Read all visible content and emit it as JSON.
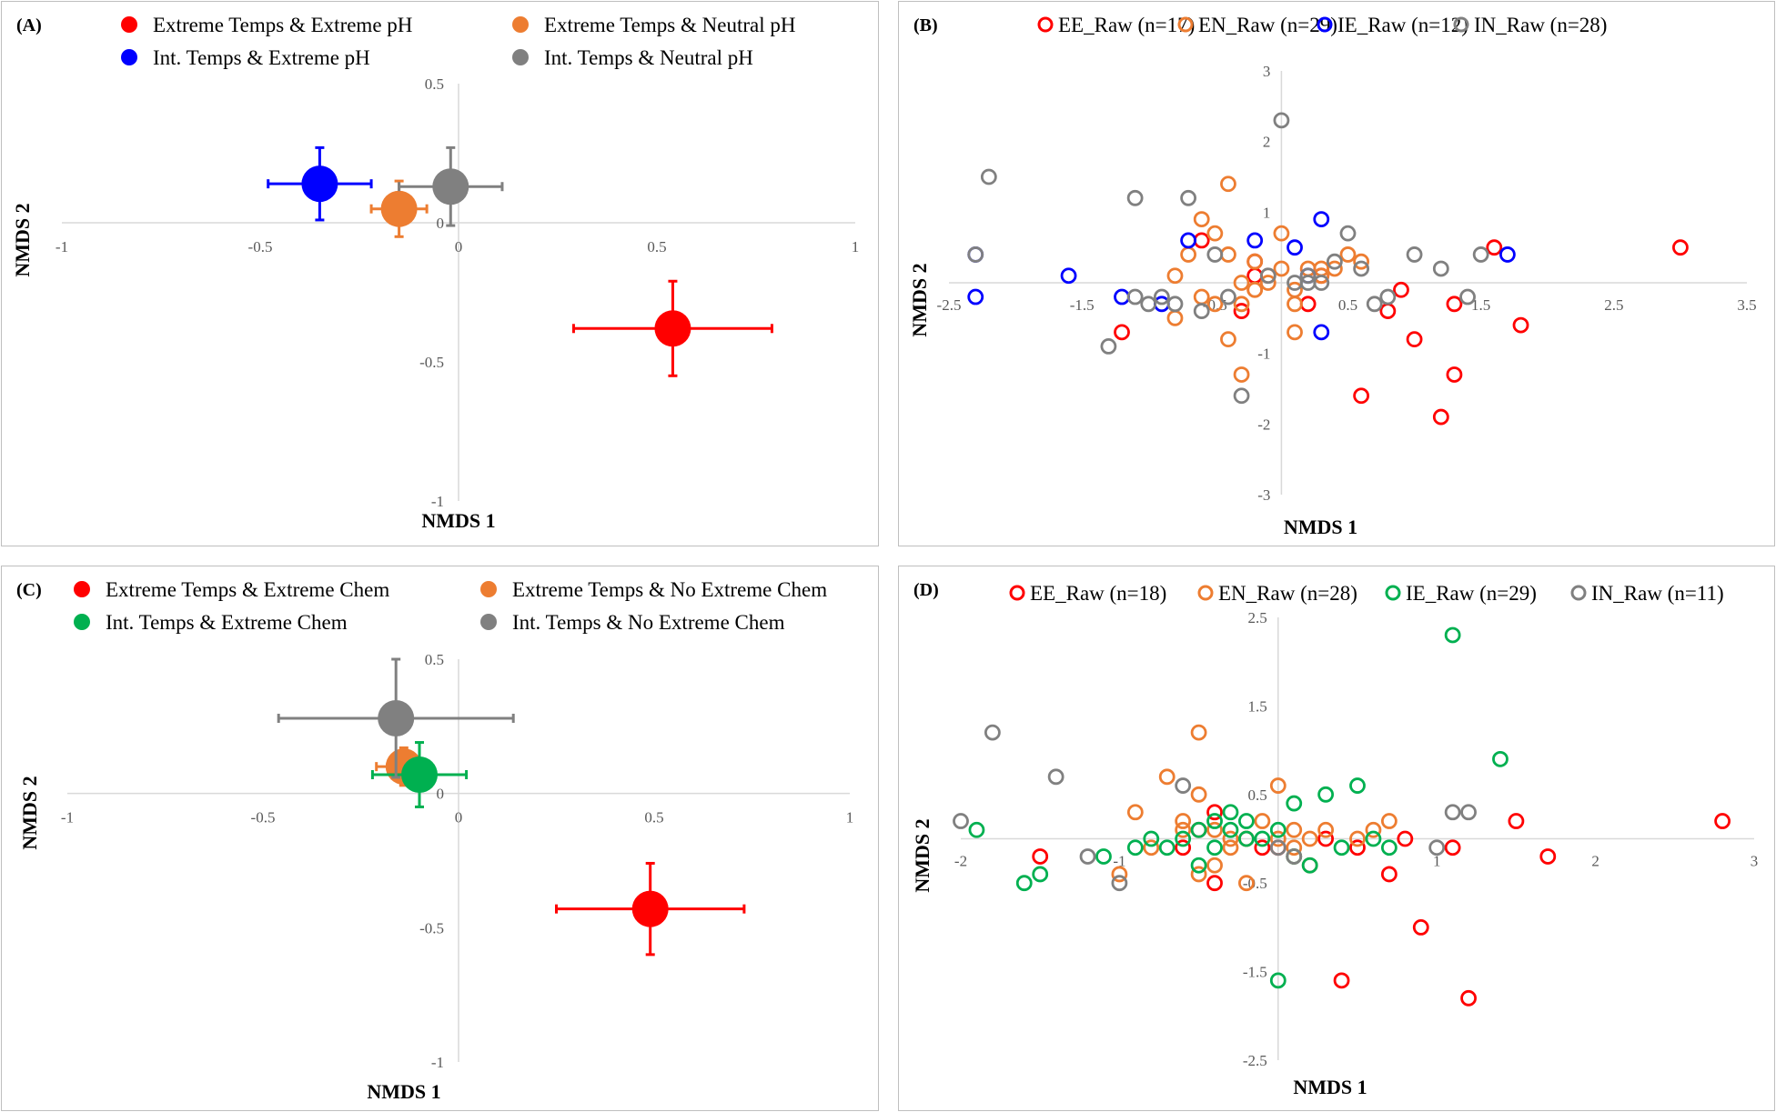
{
  "chart_data": [
    {
      "id": "A",
      "panel_label": "(A)",
      "type": "scatter",
      "xlabel": "NMDS 1",
      "ylabel": "NMDS 2",
      "xlim": [
        -1,
        1
      ],
      "ylim": [
        -1,
        0.5
      ],
      "x_ticks": [
        -1,
        -0.5,
        0,
        0.5,
        1
      ],
      "y_ticks": [
        0.5,
        0,
        -0.5,
        -1
      ],
      "x_tick_labels": [
        "-1",
        "-0.5",
        "0",
        "0.5",
        "1"
      ],
      "y_tick_labels": [
        "0.5",
        "0",
        "-0.5",
        "-1"
      ],
      "legend_placement": "top",
      "series": [
        {
          "name": "Extreme Temps & Extreme pH",
          "color": "#ff0000",
          "points": [
            {
              "x": 0.54,
              "y": -0.38,
              "xerr": 0.25,
              "yerr": 0.17
            }
          ]
        },
        {
          "name": "Extreme Temps & Neutral pH",
          "color": "#ed7d31",
          "points": [
            {
              "x": -0.15,
              "y": 0.05,
              "xerr": 0.07,
              "yerr": 0.1
            }
          ]
        },
        {
          "name": "Int. Temps & Extreme pH",
          "color": "#0000ff",
          "points": [
            {
              "x": -0.35,
              "y": 0.14,
              "xerr": 0.13,
              "yerr": 0.13
            }
          ]
        },
        {
          "name": "Int. Temps & Neutral pH",
          "color": "#808080",
          "points": [
            {
              "x": -0.02,
              "y": 0.13,
              "xerr": 0.13,
              "yerr": 0.14
            }
          ]
        }
      ]
    },
    {
      "id": "B",
      "panel_label": "(B)",
      "type": "scatter",
      "xlabel": "NMDS 1",
      "ylabel": "NMDS 2",
      "xlim": [
        -2.5,
        3.5
      ],
      "ylim": [
        -3,
        3
      ],
      "x_ticks": [
        -2.5,
        -1.5,
        -0.5,
        0.5,
        1.5,
        2.5,
        3.5
      ],
      "y_ticks": [
        3,
        2,
        1,
        -1,
        -2,
        -3
      ],
      "x_tick_labels": [
        "-2.5",
        "-1.5",
        "-0.5",
        "0.5",
        "1.5",
        "2.5",
        "3.5"
      ],
      "y_tick_labels": [
        "3",
        "2",
        "1",
        "-1",
        "-2",
        "-3"
      ],
      "legend_placement": "top",
      "series": [
        {
          "name": "EE_Raw (n=17)",
          "color": "#ff0000",
          "x": [
            3.0,
            1.6,
            1.8,
            0.8,
            1.3,
            1.3,
            1.2,
            1.0,
            0.9,
            0.6,
            0.2,
            0.3,
            -0.2,
            -0.6,
            -0.3,
            -1.2,
            -0.2
          ],
          "y": [
            0.5,
            0.5,
            -0.6,
            -0.4,
            -0.3,
            -1.3,
            -1.9,
            -0.8,
            -0.1,
            -1.6,
            -0.3,
            0.1,
            0.3,
            0.6,
            -0.4,
            -0.7,
            0.1
          ]
        },
        {
          "name": "EN_Raw (n=29)",
          "color": "#ed7d31",
          "x": [
            -0.4,
            -0.6,
            -0.5,
            -0.4,
            -0.7,
            -0.8,
            -0.2,
            -0.1,
            0.0,
            0.1,
            0.2,
            0.3,
            0.4,
            0.5,
            0.6,
            -0.3,
            -0.2,
            -0.1,
            0.1,
            0.0,
            -0.3,
            -0.4,
            -0.6,
            -0.3,
            0.1,
            -0.2,
            0.3,
            -0.8,
            -0.5
          ],
          "y": [
            1.4,
            0.9,
            0.7,
            0.4,
            0.4,
            0.1,
            -0.1,
            0.1,
            0.2,
            -0.1,
            0.2,
            0.1,
            0.2,
            0.4,
            0.3,
            0.0,
            0.3,
            0.0,
            -0.3,
            0.7,
            -1.3,
            -0.8,
            -0.2,
            -0.3,
            -0.7,
            -0.1,
            0.2,
            -0.5,
            -0.3
          ]
        },
        {
          "name": "IE_Raw (n=12)",
          "color": "#0000ff",
          "x": [
            -2.3,
            -2.3,
            -1.6,
            -1.2,
            -0.7,
            -0.2,
            0.1,
            0.2,
            0.3,
            0.3,
            1.7,
            -0.9
          ],
          "y": [
            0.4,
            -0.2,
            0.1,
            -0.2,
            0.6,
            0.6,
            0.5,
            0.1,
            0.9,
            -0.7,
            0.4,
            -0.3
          ]
        },
        {
          "name": "IN_Raw (n=28)",
          "color": "#808080",
          "x": [
            -2.2,
            -2.3,
            -1.1,
            -1.3,
            -0.3,
            -0.6,
            -0.8,
            -0.9,
            -1.0,
            -1.1,
            -0.5,
            -0.7,
            0.0,
            0.1,
            0.2,
            0.3,
            0.4,
            0.5,
            0.6,
            0.7,
            0.8,
            1.0,
            1.2,
            1.4,
            1.5,
            0.2,
            -0.1,
            -0.4
          ],
          "y": [
            1.5,
            0.4,
            1.2,
            -0.9,
            -1.6,
            -0.4,
            -0.3,
            -0.2,
            -0.3,
            -0.2,
            0.4,
            1.2,
            2.3,
            0.0,
            0.1,
            0.0,
            0.3,
            0.7,
            0.2,
            -0.3,
            -0.2,
            0.4,
            0.2,
            -0.2,
            0.4,
            0.0,
            0.1,
            -0.2
          ]
        }
      ]
    },
    {
      "id": "C",
      "panel_label": "(C)",
      "type": "scatter",
      "xlabel": "NMDS 1",
      "ylabel": "NMDS 2",
      "xlim": [
        -1,
        1
      ],
      "ylim": [
        -1,
        0.5
      ],
      "x_ticks": [
        -1,
        -0.5,
        0,
        0.5,
        1
      ],
      "y_ticks": [
        0.5,
        0,
        -0.5,
        -1
      ],
      "x_tick_labels": [
        "-1",
        "-0.5",
        "0",
        "0.5",
        "1"
      ],
      "y_tick_labels": [
        "0.5",
        "0",
        "-0.5",
        "-1"
      ],
      "legend_placement": "top",
      "series": [
        {
          "name": "Extreme Temps & Extreme Chem",
          "color": "#ff0000",
          "points": [
            {
              "x": 0.49,
              "y": -0.43,
              "xerr": 0.24,
              "yerr": 0.17
            }
          ]
        },
        {
          "name": "Extreme Temps & No Extreme Chem",
          "color": "#ed7d31",
          "points": [
            {
              "x": -0.14,
              "y": 0.1,
              "xerr": 0.07,
              "yerr": 0.07
            }
          ]
        },
        {
          "name": "Int. Temps & Extreme Chem",
          "color": "#00b050",
          "points": [
            {
              "x": -0.1,
              "y": 0.07,
              "xerr": 0.12,
              "yerr": 0.12
            }
          ]
        },
        {
          "name": "Int. Temps & No Extreme Chem",
          "color": "#808080",
          "points": [
            {
              "x": -0.16,
              "y": 0.28,
              "xerr": 0.3,
              "yerr": 0.22
            }
          ]
        }
      ]
    },
    {
      "id": "D",
      "panel_label": "(D)",
      "type": "scatter",
      "xlabel": "NMDS 1",
      "ylabel": "NMDS 2",
      "xlim": [
        -2,
        3
      ],
      "ylim": [
        -2.5,
        2.5
      ],
      "x_ticks": [
        -2,
        -1,
        1,
        2,
        3
      ],
      "y_ticks": [
        2.5,
        1.5,
        0.5,
        -0.5,
        -1.5,
        -2.5
      ],
      "x_tick_labels": [
        "-2",
        "-1",
        "1",
        "2",
        "3"
      ],
      "y_tick_labels": [
        "2.5",
        "1.5",
        "0.5",
        "-0.5",
        "-1.5",
        "-2.5"
      ],
      "legend_placement": "top",
      "series": [
        {
          "name": "EE_Raw (n=18)",
          "color": "#ff0000",
          "x": [
            2.8,
            1.5,
            1.7,
            0.4,
            0.9,
            1.2,
            1.1,
            0.7,
            0.8,
            0.5,
            0.3,
            -0.4,
            -0.5,
            -0.4,
            -0.1,
            -0.6,
            -1.5,
            0.0
          ],
          "y": [
            0.2,
            0.2,
            -0.2,
            -1.6,
            -1.0,
            -1.8,
            -0.1,
            -0.4,
            0.0,
            -0.1,
            0.0,
            0.3,
            0.1,
            -0.5,
            -0.1,
            -0.1,
            -0.2,
            -0.1
          ]
        },
        {
          "name": "EN_Raw (n=28)",
          "color": "#ed7d31",
          "x": [
            -0.5,
            -0.7,
            -0.5,
            -0.6,
            -0.4,
            -0.2,
            0.0,
            0.1,
            0.2,
            0.3,
            0.5,
            0.6,
            0.7,
            -0.3,
            -0.2,
            -0.1,
            0.1,
            0.2,
            0.0,
            -0.8,
            -1.0,
            -0.4,
            -0.5,
            -0.2,
            -0.9,
            -0.6,
            -0.3,
            0.1
          ],
          "y": [
            1.2,
            0.7,
            0.5,
            0.2,
            0.1,
            0.0,
            0.0,
            0.1,
            0.0,
            0.1,
            0.0,
            0.1,
            0.2,
            -0.1,
            0.0,
            0.2,
            -0.2,
            -0.3,
            0.6,
            -0.1,
            -0.4,
            -0.3,
            -0.4,
            -0.5,
            0.3,
            0.1,
            0.0,
            -0.1
          ]
        },
        {
          "name": "IE_Raw (n=29)",
          "color": "#00b050",
          "x": [
            1.1,
            1.4,
            0.5,
            0.3,
            0.1,
            0.0,
            -0.1,
            -0.2,
            -0.3,
            -0.4,
            -0.5,
            -0.6,
            -0.7,
            -0.8,
            -0.9,
            -1.1,
            -1.5,
            -1.9,
            -1.6,
            0.2,
            0.4,
            0.6,
            0.7,
            -0.5,
            -0.2,
            0.0,
            0.1,
            -0.3,
            -0.4
          ],
          "y": [
            2.3,
            0.9,
            0.6,
            0.5,
            0.4,
            0.1,
            0.0,
            0.2,
            0.3,
            0.2,
            0.1,
            0.0,
            -0.1,
            0.0,
            -0.1,
            -0.2,
            -0.4,
            0.1,
            -0.5,
            -0.3,
            -0.1,
            0.0,
            -0.1,
            -0.3,
            0.0,
            -1.6,
            -0.2,
            0.1,
            -0.1
          ]
        },
        {
          "name": "IN_Raw (n=11)",
          "color": "#808080",
          "x": [
            -1.8,
            -2.0,
            -1.4,
            -1.2,
            -0.6,
            -1.0,
            0.0,
            0.1,
            1.0,
            1.1,
            1.2
          ],
          "y": [
            1.2,
            0.2,
            0.7,
            -0.2,
            0.6,
            -0.5,
            -0.1,
            -0.2,
            -0.1,
            0.3,
            0.3
          ]
        }
      ]
    }
  ]
}
